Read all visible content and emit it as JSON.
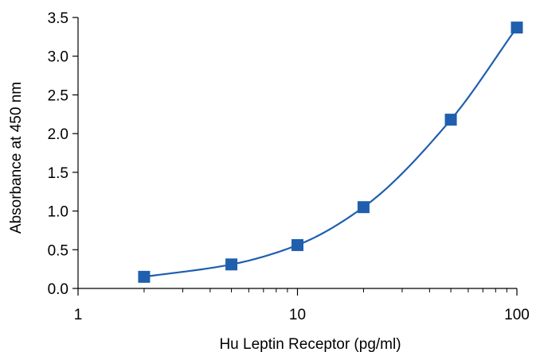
{
  "chart_data": {
    "type": "scatter",
    "title": "",
    "xlabel": "Hu Leptin Receptor (pg/ml)",
    "ylabel": "Absorbance at 450 nm",
    "x_scale": "log",
    "xlim": [
      1,
      100
    ],
    "ylim": [
      0,
      3.5
    ],
    "x_ticks": [
      1,
      10,
      100
    ],
    "x_tick_labels": [
      "1",
      "10",
      "100"
    ],
    "y_ticks": [
      0,
      0.5,
      1.0,
      1.5,
      2.0,
      2.5,
      3.0,
      3.5
    ],
    "y_tick_labels": [
      "0.0",
      "0.5",
      "1.0",
      "1.5",
      "2.0",
      "2.5",
      "3.0",
      "3.5"
    ],
    "grid": false,
    "legend": "none",
    "series": [
      {
        "x": [
          2,
          5,
          10,
          20,
          50,
          100
        ],
        "y": [
          0.15,
          0.31,
          0.56,
          1.05,
          2.18,
          3.37
        ],
        "marker": "square",
        "fit_line": "smooth curve",
        "color": "#1f5fae"
      }
    ]
  }
}
